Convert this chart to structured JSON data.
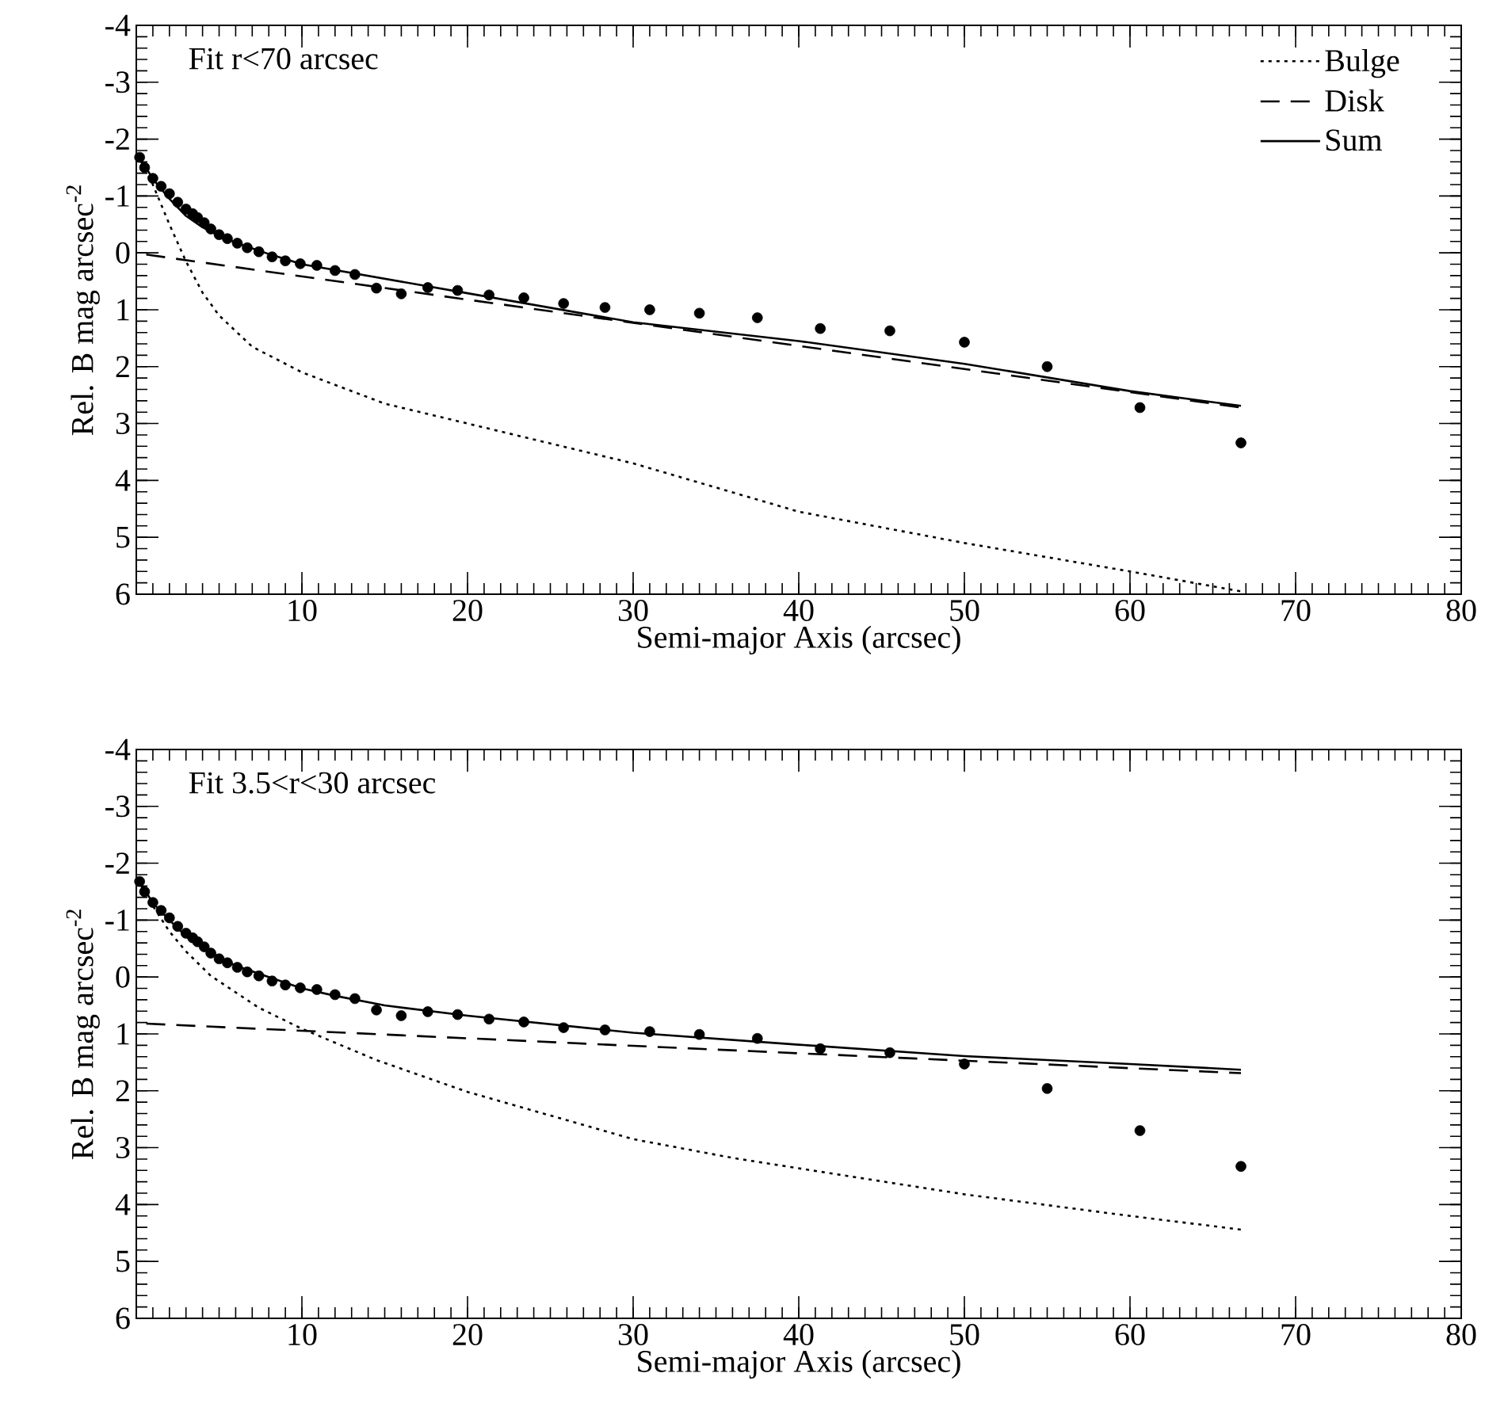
{
  "chart_data": [
    {
      "type": "line",
      "xlabel": "Semi-major Axis (arcsec)",
      "ylabel": "Rel. B mag arcsec$^{-2}$",
      "annotations": [
        "Fit r<70 arcsec"
      ],
      "xlim": [
        0,
        80
      ],
      "xticks": [
        10,
        20,
        30,
        40,
        50,
        60,
        70,
        80
      ],
      "ylim": [
        6,
        -4
      ],
      "yticks": [
        -4,
        -3,
        -2,
        -1,
        0,
        1,
        2,
        3,
        4,
        5,
        6
      ],
      "legend": "top right",
      "series": [
        {
          "type": "scatter",
          "marker": "circle",
          "color": "#000000",
          "x": [
            0.2,
            0.5,
            1.0,
            1.5,
            2.0,
            2.5,
            3.0,
            3.4,
            3.7,
            4.1,
            4.5,
            5.0,
            5.5,
            6.1,
            6.7,
            7.4,
            8.2,
            9.0,
            9.9,
            10.9,
            12.0,
            13.2,
            14.5,
            16.0,
            17.6,
            19.4,
            21.3,
            23.4,
            25.8,
            28.3,
            31.0,
            34.0,
            37.5,
            41.3,
            45.5,
            50.0,
            55.0,
            60.6,
            66.7
          ],
          "values": [
            -1.68,
            -1.5,
            -1.31,
            -1.17,
            -1.04,
            -0.89,
            -0.77,
            -0.69,
            -0.62,
            -0.53,
            -0.42,
            -0.32,
            -0.25,
            -0.17,
            -0.09,
            -0.02,
            0.07,
            0.14,
            0.19,
            0.22,
            0.31,
            0.38,
            0.62,
            0.72,
            0.61,
            0.66,
            0.74,
            0.79,
            0.89,
            0.96,
            1.0,
            1.06,
            1.14,
            1.33,
            1.37,
            1.57,
            2.0,
            2.72,
            3.34
          ]
        },
        {
          "name": "Bulge",
          "line_style": "dotted",
          "color": "#000000",
          "x": [
            0.3,
            1,
            2,
            3,
            4,
            5,
            7,
            10,
            15,
            20,
            25,
            30,
            40,
            50,
            60,
            66.7
          ],
          "values": [
            -1.6,
            -1.2,
            -0.5,
            0.15,
            0.7,
            1.1,
            1.65,
            2.1,
            2.65,
            3.0,
            3.35,
            3.7,
            4.55,
            5.1,
            5.6,
            5.95
          ]
        },
        {
          "name": "Disk",
          "line_style": "dashed",
          "color": "#000000",
          "x": [
            0.6,
            30,
            66.7
          ],
          "values": [
            0.03,
            1.23,
            2.72
          ]
        },
        {
          "name": "Sum",
          "line_style": "solid",
          "color": "#000000",
          "x": [
            0.2,
            1,
            2,
            3,
            4,
            5,
            6,
            8,
            10,
            20,
            30,
            40,
            50,
            60,
            66.7
          ],
          "values": [
            -1.68,
            -1.3,
            -0.95,
            -0.65,
            -0.45,
            -0.3,
            -0.18,
            0.02,
            0.2,
            0.71,
            1.22,
            1.55,
            1.95,
            2.43,
            2.69
          ]
        }
      ]
    },
    {
      "type": "line",
      "xlabel": "Semi-major Axis (arcsec)",
      "ylabel": "Rel. B mag arcsec$^{-2}$",
      "annotations": [
        "Fit 3.5<r<30 arcsec"
      ],
      "xlim": [
        0,
        80
      ],
      "xticks": [
        10,
        20,
        30,
        40,
        50,
        60,
        70,
        80
      ],
      "ylim": [
        6,
        -4
      ],
      "yticks": [
        -4,
        -3,
        -2,
        -1,
        0,
        1,
        2,
        3,
        4,
        5,
        6
      ],
      "series": [
        {
          "type": "scatter",
          "marker": "circle",
          "color": "#000000",
          "x": [
            0.2,
            0.5,
            1.0,
            1.5,
            2.0,
            2.5,
            3.0,
            3.4,
            3.7,
            4.1,
            4.5,
            5.0,
            5.5,
            6.1,
            6.7,
            7.4,
            8.2,
            9.0,
            9.9,
            10.9,
            12.0,
            13.2,
            14.5,
            16.0,
            17.6,
            19.4,
            21.3,
            23.4,
            25.8,
            28.3,
            31.0,
            34.0,
            37.5,
            41.3,
            45.5,
            50.0,
            55.0,
            60.6,
            66.7
          ],
          "values": [
            -1.68,
            -1.5,
            -1.31,
            -1.17,
            -1.04,
            -0.89,
            -0.77,
            -0.69,
            -0.62,
            -0.53,
            -0.42,
            -0.32,
            -0.25,
            -0.17,
            -0.09,
            -0.02,
            0.07,
            0.14,
            0.19,
            0.22,
            0.31,
            0.38,
            0.58,
            0.68,
            0.61,
            0.66,
            0.74,
            0.79,
            0.89,
            0.93,
            0.96,
            1.01,
            1.08,
            1.26,
            1.33,
            1.53,
            1.96,
            2.7,
            3.33
          ]
        },
        {
          "line_style": "dotted",
          "color": "#000000",
          "x": [
            0.3,
            1,
            2,
            3,
            4.5,
            7.4,
            10,
            14.5,
            20,
            30,
            36,
            50,
            60,
            66.7
          ],
          "values": [
            -1.6,
            -1.25,
            -0.8,
            -0.45,
            -0.02,
            0.54,
            0.91,
            1.46,
            2.02,
            2.85,
            3.18,
            3.82,
            4.2,
            4.44
          ]
        },
        {
          "line_style": "dashed",
          "color": "#000000",
          "x": [
            0.6,
            30,
            66.7
          ],
          "values": [
            0.82,
            1.21,
            1.69
          ]
        },
        {
          "line_style": "solid",
          "color": "#000000",
          "x": [
            0.2,
            1,
            2,
            3,
            4,
            5,
            6,
            8,
            10,
            12,
            15,
            20,
            25,
            30,
            40,
            50,
            60,
            66.7
          ],
          "values": [
            -1.68,
            -1.3,
            -1.0,
            -0.72,
            -0.52,
            -0.35,
            -0.2,
            0.0,
            0.2,
            0.33,
            0.5,
            0.68,
            0.83,
            0.98,
            1.19,
            1.39,
            1.53,
            1.63
          ]
        }
      ]
    }
  ]
}
